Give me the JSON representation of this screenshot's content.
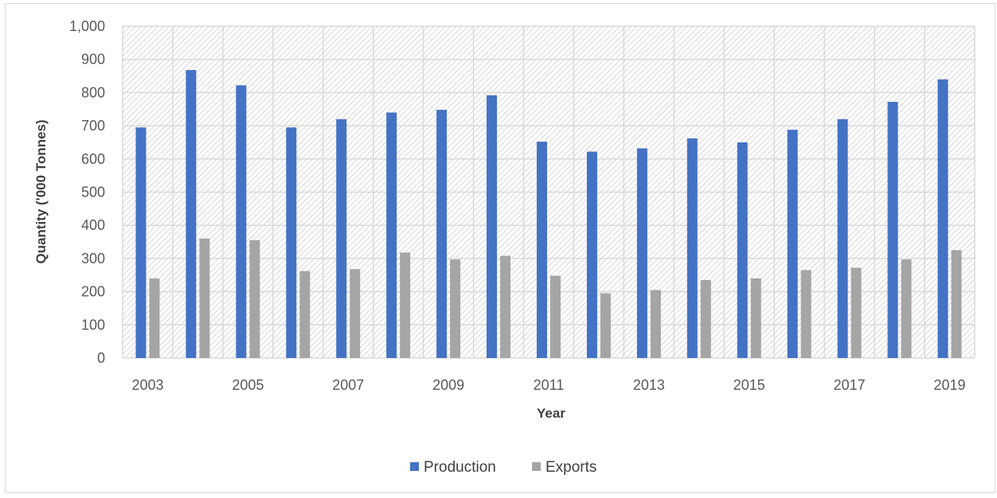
{
  "chart_data": {
    "type": "bar",
    "title": "",
    "xlabel": "Year",
    "ylabel": "Quantity ('000 Tonnes)",
    "ylim": [
      0,
      1000
    ],
    "yticks": [
      0,
      100,
      200,
      300,
      400,
      500,
      600,
      700,
      800,
      900,
      1000
    ],
    "ytick_labels": [
      "0",
      "100",
      "200",
      "300",
      "400",
      "500",
      "600",
      "700",
      "800",
      "900",
      "1,000"
    ],
    "categories": [
      "2003",
      "2004",
      "2005",
      "2006",
      "2007",
      "2008",
      "2009",
      "2010",
      "2011",
      "2012",
      "2013",
      "2014",
      "2015",
      "2016",
      "2017",
      "2018",
      "2019"
    ],
    "xtick_labels": [
      "2003",
      "",
      "2005",
      "",
      "2007",
      "",
      "2009",
      "",
      "2011",
      "",
      "2013",
      "",
      "2015",
      "",
      "2017",
      "",
      "2019"
    ],
    "series": [
      {
        "name": "Production",
        "color": "#4472c4",
        "values": [
          695,
          868,
          822,
          695,
          720,
          740,
          748,
          792,
          652,
          622,
          632,
          662,
          650,
          688,
          720,
          772,
          840
        ]
      },
      {
        "name": "Exports",
        "color": "#a5a5a5",
        "values": [
          240,
          360,
          355,
          262,
          268,
          318,
          297,
          308,
          248,
          195,
          205,
          235,
          240,
          265,
          272,
          297,
          325
        ]
      }
    ],
    "grid": true,
    "plot_background": "hatched",
    "legend_position": "bottom"
  }
}
